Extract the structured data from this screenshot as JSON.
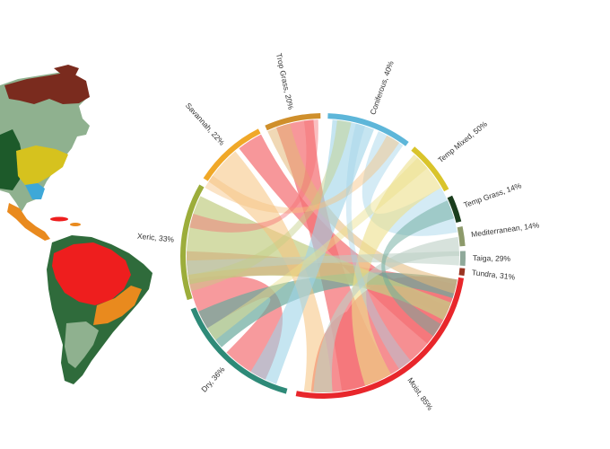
{
  "chord": {
    "segments": [
      {
        "name": "Moist",
        "percent": "85%",
        "color": "#e8262b"
      },
      {
        "name": "Dry",
        "percent": "36%",
        "color": "#2e8a78"
      },
      {
        "name": "Xeric",
        "percent": "33%",
        "color": "#9cad3b"
      },
      {
        "name": "Savannah",
        "percent": "22%",
        "color": "#f0a828"
      },
      {
        "name": "Trop Grass",
        "percent": "20%",
        "color": "#cf8f2b"
      },
      {
        "name": "Coniferous",
        "percent": "40%",
        "color": "#5db6d9"
      },
      {
        "name": "Temp Mixed",
        "percent": "50%",
        "color": "#d9c42b"
      },
      {
        "name": "Temp Grass",
        "percent": "14%",
        "color": "#1a3d1c"
      },
      {
        "name": "Mediterranean",
        "percent": "14%",
        "color": "#8d9a6b"
      },
      {
        "name": "Taiga",
        "percent": "29%",
        "color": "#8fa99a"
      },
      {
        "name": "Tundra",
        "percent": "31%",
        "color": "#9a3422"
      }
    ],
    "ribbon_colors": {
      "moist": "#f46f73",
      "dry": "#6aa99c",
      "xeric": "#c3cf86",
      "savannah": "#f6c27e",
      "trop_grass": "#e3b878",
      "coniferous": "#9fd3e8",
      "temp_mixed": "#ece08a",
      "taiga": "#bccfc4"
    },
    "map_colors": {
      "ocean": "#ffffff",
      "rainforest": "#ee1e1e",
      "tropical_dry": "#e98a1e",
      "temperate": "#8fb18f",
      "boreal": "#1d5a2a",
      "tundra": "#7a2b1e",
      "grassland": "#d6c21e",
      "coast_blue": "#3ea8d8",
      "savanna_dark": "#2f6b3b"
    }
  }
}
